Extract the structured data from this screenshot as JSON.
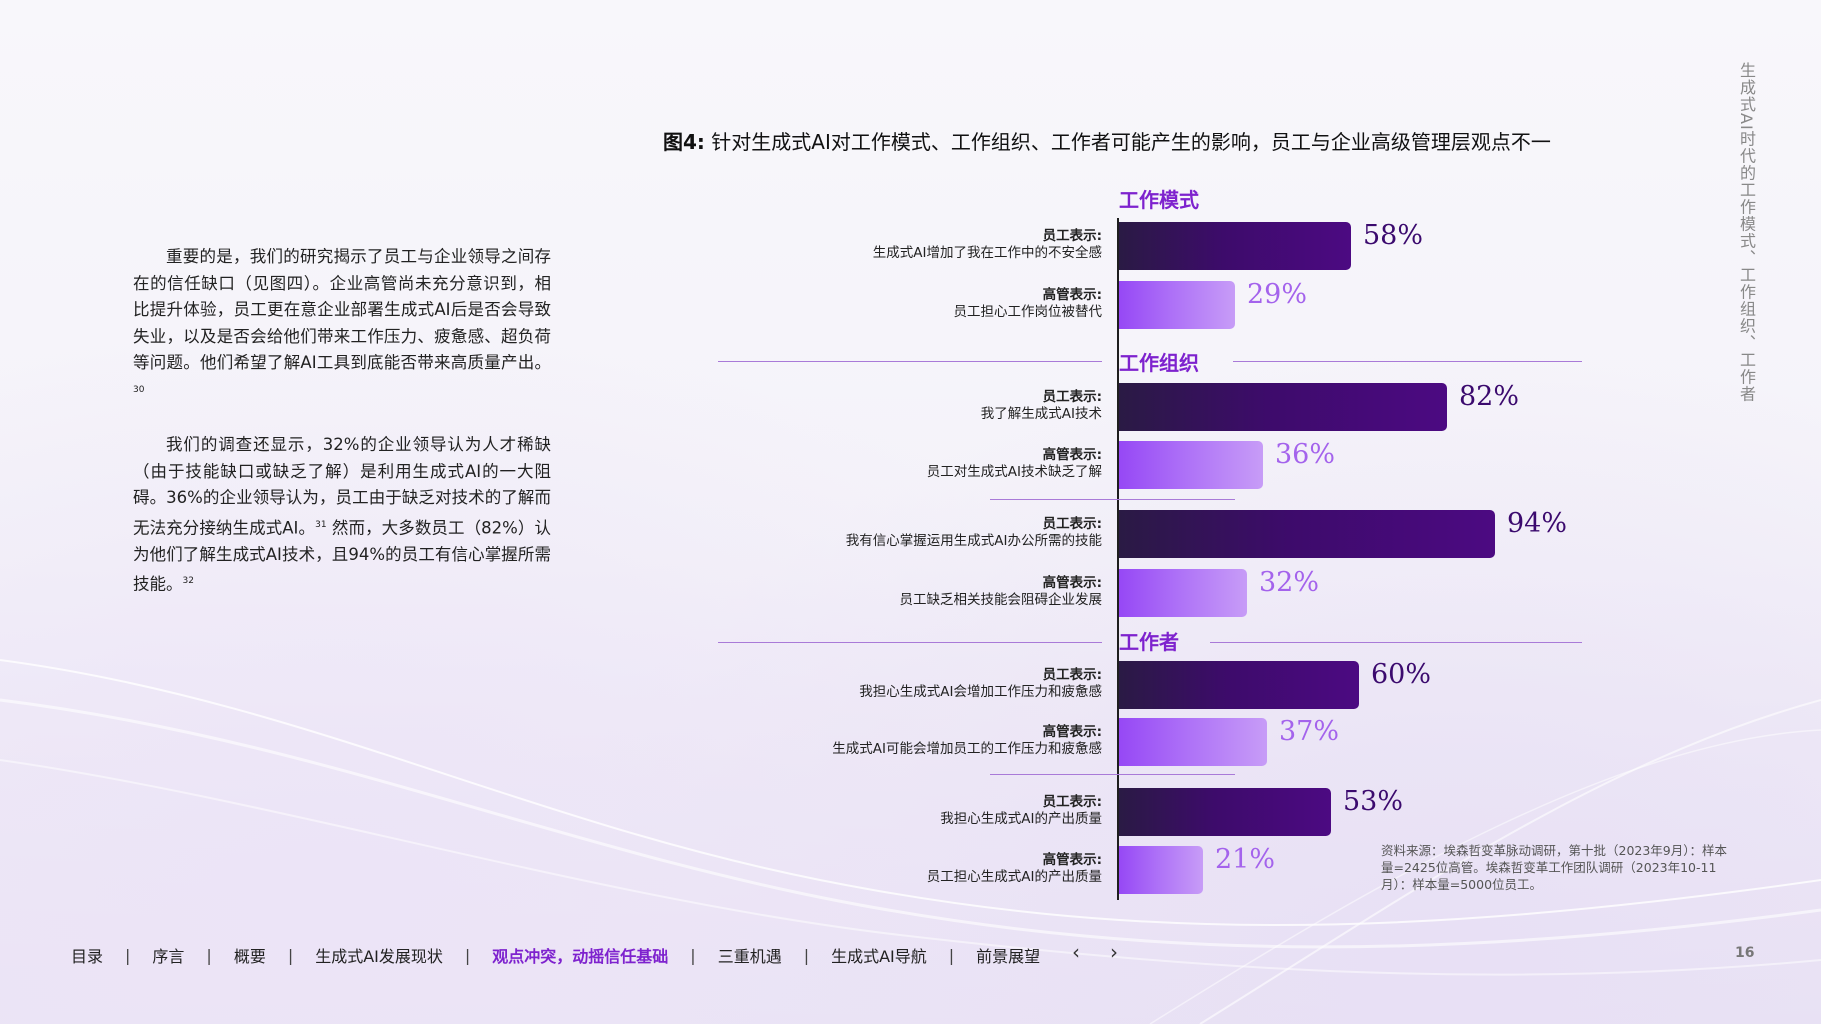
{
  "body": {
    "para1": "重要的是，我们的研究揭示了员工与企业领导之间存在的信任缺口（见图四）。企业高管尚未充分意识到，相比提升体验，员工更在意企业部署生成式AI后是否会导致失业，以及是否会给他们带来工作压力、疲惫感、超负荷等问题。他们希望了解AI工具到底能否带来高质量产出。",
    "para1_ref": "30",
    "para2_a": "我们的调查还显示，32%的企业领导认为人才稀缺（由于技能缺口或缺乏了解）是利用生成式AI的一大阻碍。36%的企业领导认为，员工由于缺乏对技术的了解而无法充分接纳生成式AI。",
    "para2_ref1": "31",
    "para2_b": " 然而，大多数员工（82%）认为他们了解生成式AI技术，且94%的员工有信心掌握所需技能。",
    "para2_ref2": "32"
  },
  "figure": {
    "label": "图4:",
    "title": "针对生成式AI对工作模式、工作组织、工作者可能产生的影响，员工与企业高级管理层观点不一"
  },
  "chart_data": {
    "type": "bar",
    "orientation": "horizontal",
    "unit": "%",
    "xlim": [
      0,
      100
    ],
    "colors": {
      "employee": "#3d0b6b",
      "executive": "#a463ec",
      "section": "#7e22ce"
    },
    "sections": [
      {
        "title": "工作模式",
        "rows": [
          {
            "who": "员工表示:",
            "text": "生成式AI增加了我在工作中的不安全感",
            "value": 58,
            "group": "employee"
          },
          {
            "who": "高管表示:",
            "text": "员工担心工作岗位被替代",
            "value": 29,
            "group": "executive"
          }
        ]
      },
      {
        "title": "工作组织",
        "rows": [
          {
            "who": "员工表示:",
            "text": "我了解生成式AI技术",
            "value": 82,
            "group": "employee"
          },
          {
            "who": "高管表示:",
            "text": "员工对生成式AI技术缺乏了解",
            "value": 36,
            "group": "executive"
          },
          {
            "who": "员工表示:",
            "text": "我有信心掌握运用生成式AI办公所需的技能",
            "value": 94,
            "group": "employee"
          },
          {
            "who": "高管表示:",
            "text": "员工缺乏相关技能会阻碍企业发展",
            "value": 32,
            "group": "executive"
          }
        ]
      },
      {
        "title": "工作者",
        "rows": [
          {
            "who": "员工表示:",
            "text": "我担心生成式AI会增加工作压力和疲惫感",
            "value": 60,
            "group": "employee"
          },
          {
            "who": "高管表示:",
            "text": "生成式AI可能会增加员工的工作压力和疲惫感",
            "value": 37,
            "group": "executive"
          },
          {
            "who": "员工表示:",
            "text": "我担心生成式AI的产出质量",
            "value": 53,
            "group": "employee"
          },
          {
            "who": "高管表示:",
            "text": "员工担心生成式AI的产出质量",
            "value": 21,
            "group": "executive"
          }
        ]
      }
    ]
  },
  "source": "资料来源：埃森哲变革脉动调研，第十批（2023年9月）：样本量=2425位高管。埃森哲变革工作团队调研（2023年10-11月）：样本量=5000位员工。",
  "side_title": "生成式AI时代的工作模式、工作组织、工作者",
  "nav": {
    "items": [
      "目录",
      "序言",
      "概要",
      "生成式AI发展现状",
      "观点冲突，动摇信任基础",
      "三重机遇",
      "生成式AI导航",
      "前景展望"
    ],
    "active": "观点冲突，动摇信任基础",
    "separator": "|",
    "prev_icon": "chevron-left-icon",
    "next_icon": "chevron-right-icon",
    "prev_glyph": "‹",
    "next_glyph": "›"
  },
  "page_number": "16"
}
